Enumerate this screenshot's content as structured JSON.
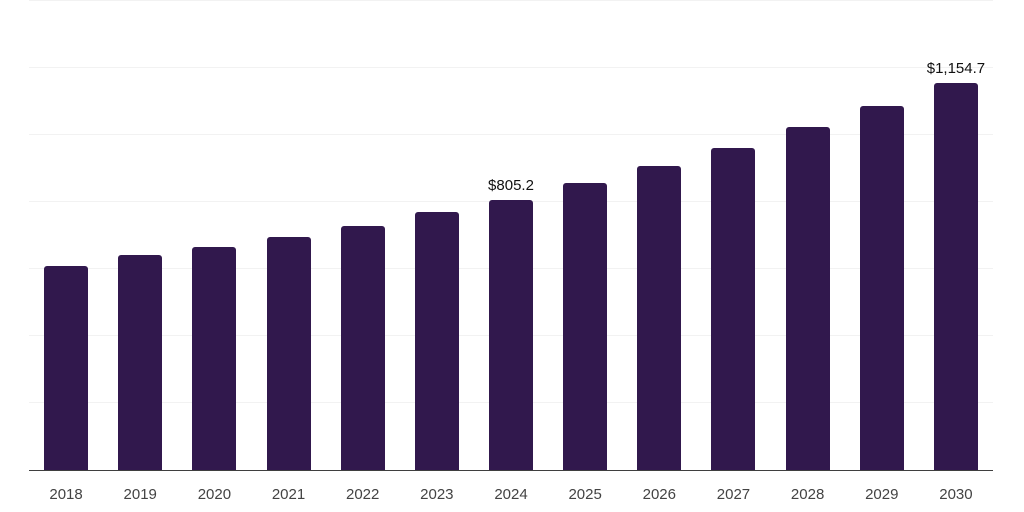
{
  "chart_data": {
    "type": "bar",
    "title": "",
    "xlabel": "",
    "ylabel": "",
    "categories": [
      "2018",
      "2019",
      "2020",
      "2021",
      "2022",
      "2023",
      "2024",
      "2025",
      "2026",
      "2027",
      "2028",
      "2029",
      "2030"
    ],
    "values": [
      608,
      641,
      665,
      695,
      727,
      769,
      805.2,
      856,
      907,
      960,
      1023,
      1086,
      1154.7
    ],
    "value_labels": [
      "",
      "",
      "",
      "",
      "",
      "",
      "$805.2",
      "",
      "",
      "",
      "",
      "",
      "$1,154.7"
    ],
    "ylim": [
      0,
      1400
    ],
    "grid_step": 200,
    "grid": true,
    "y_tick_labels_visible": false,
    "legend": false,
    "colors": {
      "bar": "#31184d",
      "gridline": "#f2f2f2",
      "axis_line": "#3f3f3f",
      "tick_label": "#434343",
      "data_label": "#111111",
      "background": "#ffffff"
    }
  }
}
